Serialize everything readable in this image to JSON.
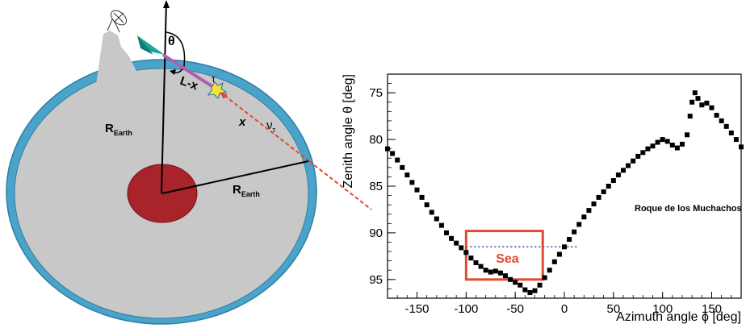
{
  "diagram": {
    "labels": {
      "theta": "θ",
      "l_minus_x": "L-x",
      "tau": "τ",
      "x": "x",
      "nu_tau": "ν",
      "nu_sub": "τ",
      "r_earth_1": "R",
      "r_earth_1_sub": "Earth",
      "r_earth_2": "R",
      "r_earth_2_sub": "Earth"
    },
    "colors": {
      "earth": "#c8c8c8",
      "ocean": "#4aa3c9",
      "core": "#a8232a",
      "track": "#b05fb0",
      "neutrino_path": "#e24a2f",
      "telescope": "#18a59a"
    }
  },
  "chart_data": {
    "type": "scatter",
    "xlabel": "Azimuth angle ϕ [deg]",
    "ylabel": "Zenith angle θ [deg]",
    "xlim": [
      -180,
      180
    ],
    "ylim": [
      97,
      73
    ],
    "x_ticks": [
      -150,
      -100,
      -50,
      0,
      50,
      100,
      150
    ],
    "y_ticks": [
      75,
      80,
      85,
      90,
      95
    ],
    "annotations": {
      "site_label": "Roque de los Muchachos",
      "sea_label": "Sea",
      "horizon_line_y": 91.5
    },
    "series": [
      {
        "points": [
          [
            -180,
            81
          ],
          [
            -175,
            81.5
          ],
          [
            -170,
            82.2
          ],
          [
            -165,
            83
          ],
          [
            -160,
            83.8
          ],
          [
            -155,
            84.6
          ],
          [
            -150,
            85.4
          ],
          [
            -145,
            86.2
          ],
          [
            -140,
            87
          ],
          [
            -135,
            87.8
          ],
          [
            -130,
            88.5
          ],
          [
            -125,
            89.2
          ],
          [
            -120,
            90
          ],
          [
            -115,
            90.6
          ],
          [
            -110,
            91.1
          ],
          [
            -105,
            91.6
          ],
          [
            -100,
            92.1
          ],
          [
            -95,
            92.7
          ],
          [
            -90,
            93.2
          ],
          [
            -85,
            93.6
          ],
          [
            -80,
            94
          ],
          [
            -75,
            94.2
          ],
          [
            -70,
            94.1
          ],
          [
            -65,
            94.3
          ],
          [
            -60,
            94.6
          ],
          [
            -55,
            95
          ],
          [
            -50,
            95.3
          ],
          [
            -45,
            95.6
          ],
          [
            -40,
            96.1
          ],
          [
            -35,
            96.4
          ],
          [
            -30,
            96.2
          ],
          [
            -25,
            95.6
          ],
          [
            -20,
            94.8
          ],
          [
            -15,
            94
          ],
          [
            -10,
            93.1
          ],
          [
            -5,
            92.3
          ],
          [
            0,
            91.5
          ],
          [
            5,
            90.7
          ],
          [
            10,
            89.9
          ],
          [
            15,
            89.1
          ],
          [
            20,
            88.3
          ],
          [
            25,
            87.6
          ],
          [
            30,
            86.9
          ],
          [
            35,
            86.2
          ],
          [
            40,
            85.6
          ],
          [
            45,
            85
          ],
          [
            50,
            84.4
          ],
          [
            55,
            83.8
          ],
          [
            60,
            83.3
          ],
          [
            65,
            82.8
          ],
          [
            70,
            82.3
          ],
          [
            75,
            81.8
          ],
          [
            80,
            81.4
          ],
          [
            85,
            81
          ],
          [
            90,
            80.7
          ],
          [
            95,
            80.3
          ],
          [
            100,
            80
          ],
          [
            105,
            80.2
          ],
          [
            110,
            80.6
          ],
          [
            115,
            80.9
          ],
          [
            120,
            80.5
          ],
          [
            125,
            79.5
          ],
          [
            128,
            77.5
          ],
          [
            130,
            76
          ],
          [
            133,
            75
          ],
          [
            136,
            75.6
          ],
          [
            140,
            76.3
          ],
          [
            145,
            76.1
          ],
          [
            150,
            76.6
          ],
          [
            155,
            77.4
          ],
          [
            160,
            78
          ],
          [
            165,
            78.6
          ],
          [
            170,
            79.3
          ],
          [
            175,
            80
          ],
          [
            180,
            80.8
          ]
        ]
      }
    ]
  }
}
